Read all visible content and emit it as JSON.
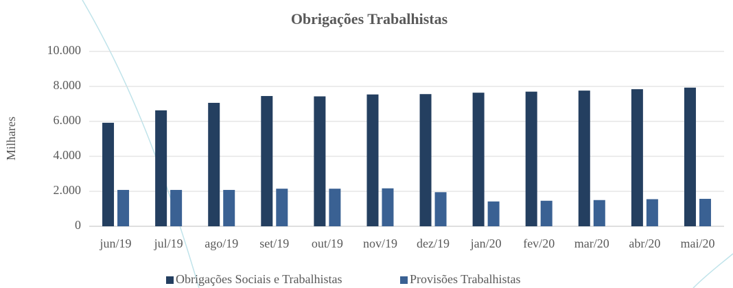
{
  "chart_data": {
    "type": "bar",
    "title": "Obrigações Trabalhistas",
    "y_label": "Milhares",
    "categories": [
      "jun/19",
      "jul/19",
      "ago/19",
      "set/19",
      "out/19",
      "nov/19",
      "dez/19",
      "jan/20",
      "fev/20",
      "mar/20",
      "abr/20",
      "mai/20"
    ],
    "series": [
      {
        "name": "Obrigações Sociais e Trabalhistas",
        "color": "#243f60",
        "values": [
          5920,
          6630,
          7060,
          7450,
          7430,
          7540,
          7560,
          7640,
          7700,
          7760,
          7840,
          7930
        ]
      },
      {
        "name": "Provisões Trabalhistas",
        "color": "#3a6193",
        "values": [
          2080,
          2080,
          2080,
          2150,
          2150,
          2170,
          1950,
          1420,
          1460,
          1500,
          1550,
          1570
        ]
      }
    ],
    "ylim": [
      0,
      10000
    ],
    "yticks": [
      0,
      {
        "value": 2000,
        "label": "2.000"
      },
      {
        "value": 4000,
        "label": "4.000"
      },
      {
        "value": 6000,
        "label": "6.000"
      },
      {
        "value": 8000,
        "label": "8.000"
      },
      {
        "value": 10000,
        "label": "10.000"
      }
    ],
    "grid": true,
    "legend": "bottom"
  }
}
